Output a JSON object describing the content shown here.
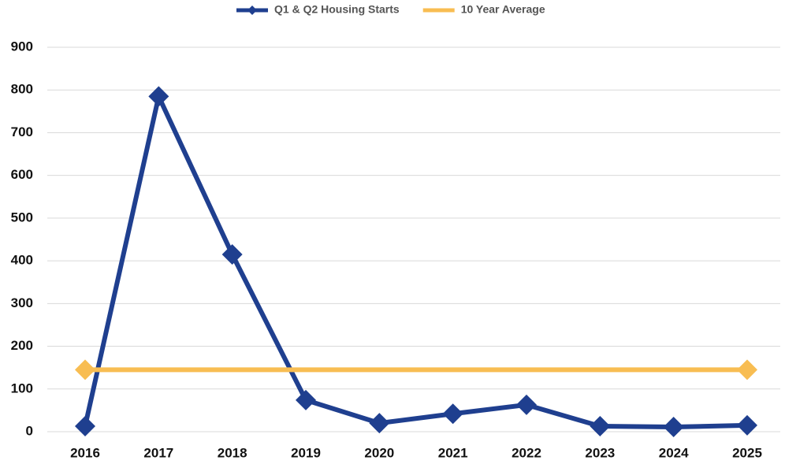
{
  "chart_data": {
    "type": "line",
    "categories": [
      "2016",
      "2017",
      "2018",
      "2019",
      "2020",
      "2021",
      "2022",
      "2023",
      "2024",
      "2025"
    ],
    "series": [
      {
        "name": "Q1 & Q2 Housing Starts",
        "color": "#1f3f8f",
        "values": [
          13,
          785,
          415,
          74,
          20,
          42,
          63,
          13,
          11,
          15
        ]
      },
      {
        "name": "10 Year Average",
        "color": "#f8bd52",
        "values": [
          145,
          145,
          145,
          145,
          145,
          145,
          145,
          145,
          145,
          145
        ]
      }
    ],
    "ylim": [
      0,
      900
    ],
    "yticks": [
      0,
      100,
      200,
      300,
      400,
      500,
      600,
      700,
      800,
      900
    ],
    "grid": true,
    "legend": "top"
  }
}
